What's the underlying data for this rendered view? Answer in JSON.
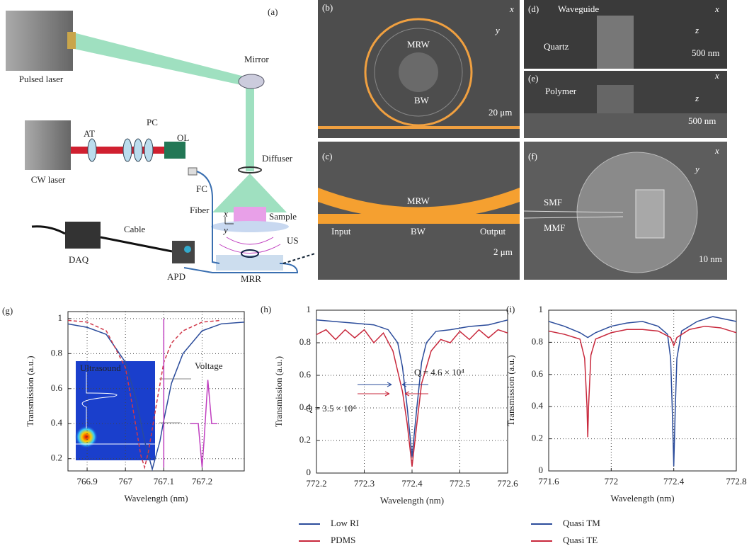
{
  "diagram": {
    "a": {
      "label": "(a)",
      "pulsed_laser": "Pulsed laser",
      "mirror": "Mirror",
      "cw_laser": "CW laser",
      "at": "AT",
      "pc": "PC",
      "ol": "OL",
      "fc": "FC",
      "diffuser": "Diffuser",
      "fiber": "Fiber",
      "sample": "Sample",
      "x": "x",
      "y": "y",
      "cable": "Cable",
      "daq": "DAQ",
      "apd": "APD",
      "mrr": "MRR",
      "us": "US"
    },
    "b": {
      "label": "(b)",
      "x": "x",
      "y": "y",
      "mrw": "MRW",
      "bw": "BW",
      "scale": "20 μm"
    },
    "c": {
      "label": "(c)",
      "mrw": "MRW",
      "input": "Input",
      "bw": "BW",
      "output": "Output",
      "scale": "2 μm"
    },
    "d": {
      "label": "(d)",
      "waveguide": "Waveguide",
      "quartz": "Quartz",
      "x": "x",
      "z": "z",
      "scale": "500 nm"
    },
    "e": {
      "label": "(e)",
      "polymer": "Polymer",
      "x": "x",
      "z": "z",
      "scale": "500 nm"
    },
    "f": {
      "label": "(f)",
      "x": "x",
      "y": "y",
      "smf": "SMF",
      "mmf": "MMF",
      "scale": "10 nm"
    }
  },
  "chart_data": [
    {
      "type": "line",
      "panel": "(g)",
      "xlabel": "Wavelength (nm)",
      "ylabel": "Transmission (a.u.)",
      "xlim": [
        766.85,
        767.31
      ],
      "ylim": [
        0.13,
        1.04
      ],
      "xticks": [
        766.9,
        767,
        767.1,
        767.2
      ],
      "yticks": [
        0.2,
        0.4,
        0.6,
        0.8,
        1
      ],
      "grid": true,
      "annotations": [
        "Ultrasound",
        "Voltage"
      ],
      "series": [
        {
          "color": "#2b4c9b",
          "dash": false,
          "x": [
            766.85,
            766.9,
            766.95,
            767,
            767.03,
            767.05,
            767.07,
            767.09,
            767.1,
            767.12,
            767.15,
            767.2,
            767.25,
            767.31
          ],
          "values": [
            0.97,
            0.95,
            0.91,
            0.75,
            0.52,
            0.3,
            0.14,
            0.3,
            0.42,
            0.63,
            0.8,
            0.93,
            0.97,
            0.98
          ]
        },
        {
          "color": "#d0384a",
          "dash": true,
          "x": [
            766.85,
            766.9,
            766.95,
            767,
            767.02,
            767.04,
            767.05,
            767.06,
            767.08,
            767.1,
            767.12,
            767.15,
            767.2,
            767.25
          ],
          "values": [
            0.99,
            0.98,
            0.93,
            0.72,
            0.48,
            0.22,
            0.15,
            0.24,
            0.5,
            0.75,
            0.86,
            0.93,
            0.98,
            0.99
          ]
        },
        {
          "color": "#c040c0",
          "dash": false,
          "x": [
            767.1,
            767.1
          ],
          "values": [
            0.15,
            1.0
          ]
        },
        {
          "color": "#c040c0",
          "dash": false,
          "x": [
            767.17,
            767.19,
            767.2,
            767.205,
            767.215,
            767.225,
            767.24
          ],
          "values": [
            0.4,
            0.4,
            0.15,
            0.3,
            0.65,
            0.4,
            0.4
          ]
        }
      ]
    },
    {
      "type": "line",
      "panel": "(h)",
      "xlabel": "Wavelength (nm)",
      "ylabel": "Transmission (a.u.)",
      "xlim": [
        772.2,
        772.6
      ],
      "ylim": [
        0,
        1
      ],
      "xticks": [
        772.2,
        772.3,
        772.4,
        772.5,
        772.6
      ],
      "yticks": [
        0,
        0.2,
        0.4,
        0.6,
        0.8,
        1
      ],
      "grid": true,
      "annotations": [
        "Q = 4.6 × 10⁴",
        "Q = 3.5 × 10⁴"
      ],
      "series": [
        {
          "name": "Low RI",
          "color": "#2b4c9b",
          "x": [
            772.2,
            772.24,
            772.28,
            772.32,
            772.35,
            772.37,
            772.38,
            772.39,
            772.4,
            772.41,
            772.42,
            772.43,
            772.45,
            772.48,
            772.52,
            772.56,
            772.6
          ],
          "values": [
            0.94,
            0.93,
            0.92,
            0.91,
            0.88,
            0.8,
            0.65,
            0.4,
            0.1,
            0.4,
            0.68,
            0.8,
            0.87,
            0.88,
            0.9,
            0.91,
            0.94
          ]
        },
        {
          "name": "PDMS",
          "color": "#c8283c",
          "x": [
            772.2,
            772.22,
            772.24,
            772.26,
            772.28,
            772.3,
            772.32,
            772.34,
            772.36,
            772.38,
            772.39,
            772.4,
            772.41,
            772.42,
            772.44,
            772.46,
            772.48,
            772.5,
            772.52,
            772.54,
            772.56,
            772.58,
            772.6
          ],
          "values": [
            0.85,
            0.88,
            0.82,
            0.88,
            0.83,
            0.88,
            0.8,
            0.86,
            0.75,
            0.5,
            0.3,
            0.04,
            0.3,
            0.55,
            0.75,
            0.82,
            0.8,
            0.87,
            0.82,
            0.88,
            0.83,
            0.88,
            0.86
          ]
        }
      ]
    },
    {
      "type": "line",
      "panel": "(i)",
      "xlabel": "Wavelength (nm)",
      "ylabel": "Transmission (a.u.)",
      "xlim": [
        771.6,
        772.8
      ],
      "ylim": [
        0,
        1
      ],
      "xticks": [
        771.6,
        772,
        772.4,
        772.8
      ],
      "yticks": [
        0,
        0.2,
        0.4,
        0.6,
        0.8,
        1
      ],
      "grid": true,
      "series": [
        {
          "name": "Quasi TM",
          "color": "#2b4c9b",
          "x": [
            771.6,
            771.7,
            771.8,
            771.85,
            771.9,
            772,
            772.1,
            772.2,
            772.3,
            772.36,
            772.38,
            772.39,
            772.4,
            772.41,
            772.42,
            772.45,
            772.55,
            772.65,
            772.7,
            772.8
          ],
          "values": [
            0.93,
            0.9,
            0.86,
            0.83,
            0.86,
            0.9,
            0.92,
            0.93,
            0.9,
            0.85,
            0.7,
            0.4,
            0.03,
            0.4,
            0.7,
            0.87,
            0.93,
            0.96,
            0.95,
            0.93
          ]
        },
        {
          "name": "Quasi TE",
          "color": "#c8283c",
          "x": [
            771.6,
            771.7,
            771.8,
            771.83,
            771.845,
            771.85,
            771.855,
            771.87,
            771.9,
            772,
            772.1,
            772.2,
            772.3,
            772.38,
            772.4,
            772.42,
            772.5,
            772.6,
            772.7,
            772.8
          ],
          "values": [
            0.87,
            0.85,
            0.82,
            0.7,
            0.4,
            0.21,
            0.4,
            0.72,
            0.82,
            0.86,
            0.88,
            0.88,
            0.87,
            0.83,
            0.78,
            0.83,
            0.88,
            0.9,
            0.89,
            0.86
          ]
        }
      ]
    }
  ]
}
